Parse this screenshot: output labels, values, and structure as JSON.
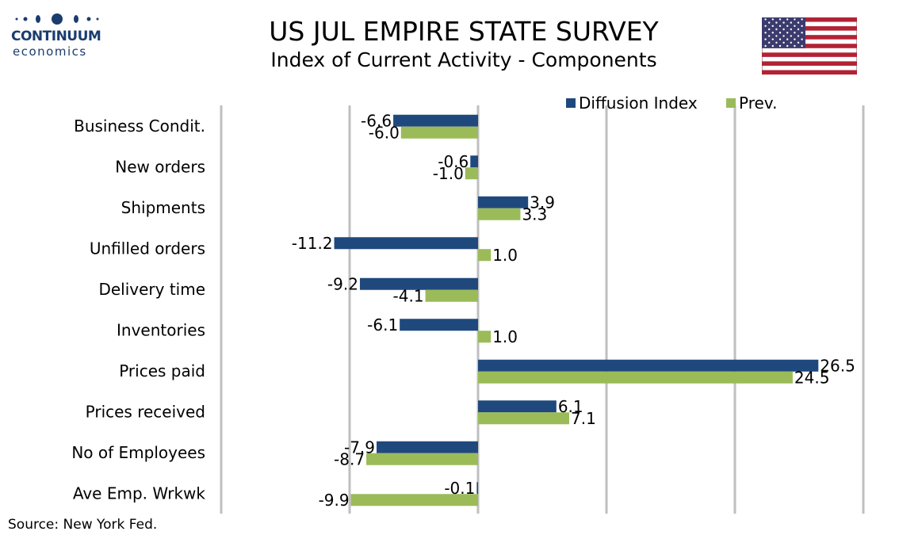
{
  "logo": {
    "name": "CONTINUUM",
    "sub": "economics"
  },
  "title": "US JUL EMPIRE STATE SURVEY",
  "subtitle": "Index of Current Activity - Components",
  "source": "Source: New York Fed.",
  "colors": {
    "diffusion": "#1f497d",
    "prev": "#9bbb59",
    "grid": "#bfbfbf",
    "brand": "#1a3c6e"
  },
  "chart_data": {
    "type": "bar",
    "orientation": "horizontal",
    "categories": [
      "Business Condit.",
      "New orders ",
      "Shipments ",
      "Unfilled orders",
      "Delivery time",
      "Inventories",
      "Prices paid",
      "Prices received",
      "No of Employees",
      "Ave Emp. Wrkwk"
    ],
    "series": [
      {
        "name": "Diffusion Index",
        "values": [
          -6.6,
          -0.6,
          3.9,
          -11.2,
          -9.2,
          -6.1,
          26.5,
          6.1,
          -7.9,
          -0.1
        ]
      },
      {
        "name": "Prev.",
        "values": [
          -6.0,
          -1.0,
          3.3,
          1.0,
          -4.1,
          1.0,
          24.5,
          7.1,
          -8.7,
          -9.9
        ]
      }
    ],
    "data_labels": [
      [
        "-6.6",
        "-0.6",
        "3.9",
        "-11.2",
        "-9.2",
        "-6.1",
        "26.5",
        "6.1",
        "-7.9",
        "-0.1"
      ],
      [
        "-6.0",
        "-1.0",
        "3.3",
        "1.0",
        "-4.1",
        "1.0",
        "24.5",
        "7.1",
        "-8.7",
        "-9.9"
      ]
    ],
    "xlim": [
      -20,
      30
    ],
    "grid": true,
    "legend": "top-right"
  }
}
